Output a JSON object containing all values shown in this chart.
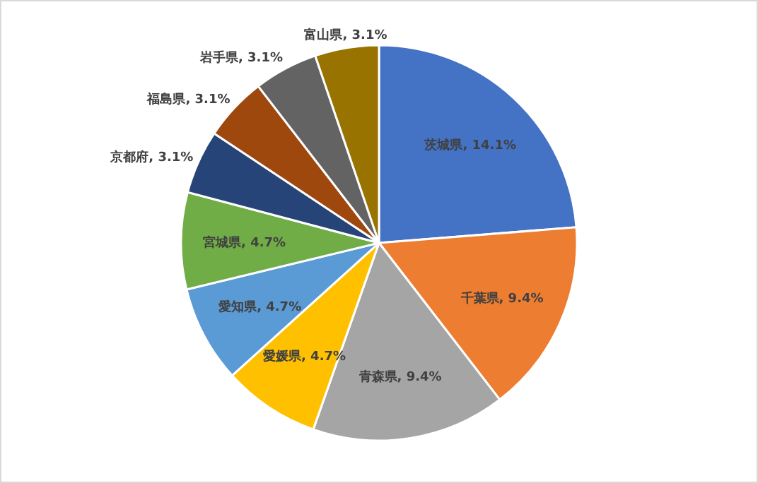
{
  "chart_data": {
    "type": "pie",
    "categories": [
      "茨城県",
      "千葉県",
      "青森県",
      "愛媛県",
      "愛知県",
      "宮城県",
      "京都府",
      "福島県",
      "岩手県",
      "富山県"
    ],
    "values": [
      14.1,
      9.4,
      9.4,
      4.7,
      4.7,
      4.7,
      3.1,
      3.1,
      3.1,
      3.1
    ],
    "value_labels": [
      "14.1%",
      "9.4%",
      "9.4%",
      "4.7%",
      "4.7%",
      "4.7%",
      "3.1%",
      "3.1%",
      "3.1%",
      "3.1%"
    ],
    "colors": [
      "#4472c4",
      "#ed7d31",
      "#a5a5a5",
      "#ffc000",
      "#5b9bd5",
      "#70ad47",
      "#264478",
      "#9e480e",
      "#636363",
      "#997300"
    ],
    "legend": false
  }
}
